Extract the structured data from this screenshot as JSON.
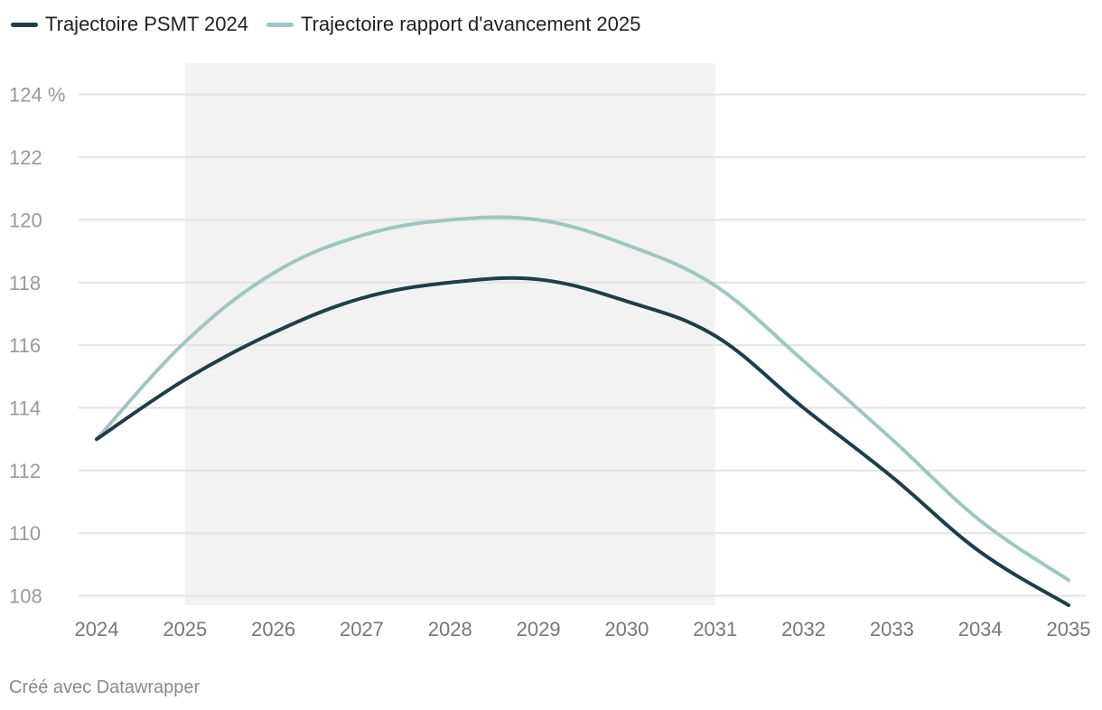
{
  "legend": [
    {
      "label": "Trajectoire PSMT 2024",
      "color": "#213d47"
    },
    {
      "label": "Trajectoire rapport d'avancement 2025",
      "color": "#9fc6c1"
    }
  ],
  "credit": "Créé avec Datawrapper",
  "chart_data": {
    "type": "line",
    "title": "",
    "xlabel": "",
    "ylabel": "",
    "x": [
      2024,
      2025,
      2026,
      2027,
      2028,
      2029,
      2030,
      2031,
      2032,
      2033,
      2034,
      2035
    ],
    "series": [
      {
        "name": "Trajectoire PSMT 2024",
        "color": "#213d47",
        "values": [
          113.0,
          114.9,
          116.4,
          117.5,
          118.0,
          118.1,
          117.4,
          116.3,
          114.0,
          111.8,
          109.4,
          107.7
        ]
      },
      {
        "name": "Trajectoire rapport d'avancement 2025",
        "color": "#9fc6c1",
        "values": [
          113.0,
          116.1,
          118.3,
          119.5,
          120.0,
          120.0,
          119.2,
          117.9,
          115.5,
          113.0,
          110.4,
          108.5
        ]
      }
    ],
    "ylim": [
      107.7,
      125
    ],
    "yticks": [
      108,
      110,
      112,
      114,
      116,
      118,
      120,
      122,
      124
    ],
    "ytick_labels": [
      "108",
      "110",
      "112",
      "114",
      "116",
      "118",
      "120",
      "122",
      "124 %"
    ],
    "shaded_range": [
      2025,
      2031
    ],
    "grid": true,
    "legend_position": "top-left"
  }
}
